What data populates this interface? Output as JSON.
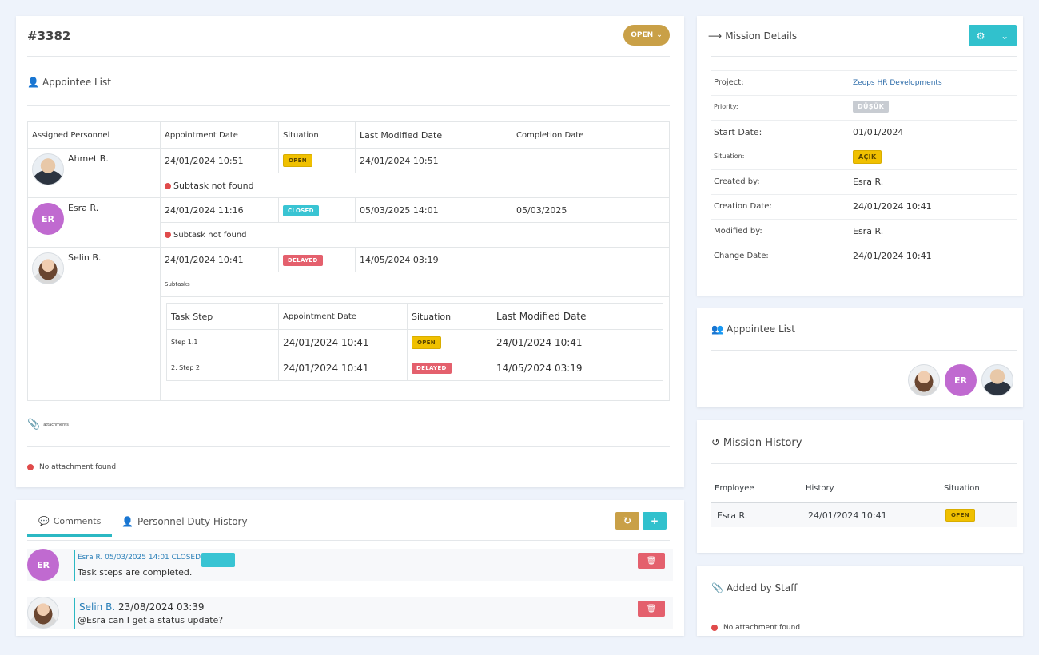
{
  "ticket": {
    "id": "#3382",
    "status_btn": "OPEN"
  },
  "appointee_section": {
    "title": "Appointee List"
  },
  "appointee_table": {
    "headers": [
      "Assigned Personnel",
      "Appointment Date",
      "Situation",
      "Last Modified Date",
      "Completion Date"
    ],
    "rows": [
      {
        "name": "Ahmet B.",
        "appointment": "24/01/2024 10:51",
        "situation": "OPEN",
        "modified": "24/01/2024 10:51",
        "completion": "",
        "note": "Subtask not found"
      },
      {
        "name": "Esra R.",
        "initials": "ER",
        "appointment": "24/01/2024 11:16",
        "situation": "CLOSED",
        "modified": "05/03/2025 14:01",
        "completion": "05/03/2025",
        "note": "Subtask not found"
      },
      {
        "name": "Selin B.",
        "appointment": "24/01/2024 10:41",
        "situation": "DELAYED",
        "modified": "14/05/2024 03:19",
        "completion": "",
        "note": "Subtasks"
      }
    ]
  },
  "subtask_table": {
    "headers": [
      "Task Step",
      "Appointment Date",
      "Situation",
      "Last Modified Date"
    ],
    "rows": [
      {
        "step": "Step 1.1",
        "appointment": "24/01/2024 10:41",
        "situation": "OPEN",
        "modified": "24/01/2024 10:41"
      },
      {
        "step": "2. Step 2",
        "appointment": "24/01/2024 10:41",
        "situation": "DELAYED",
        "modified": "14/05/2024 03:19"
      }
    ]
  },
  "attachments": {
    "title": "attachments",
    "empty": "No attachment found"
  },
  "comments": {
    "tab_comments": "Comments",
    "tab_history": "Personnel Duty History",
    "items": [
      {
        "initials": "ER",
        "meta": "Esra R. 05/03/2025 14:01 CLOSED",
        "text": "Task steps are completed."
      },
      {
        "author": "Selin B.",
        "date": "23/08/2024 03:39",
        "text": "@Esra can I get a status update?"
      }
    ]
  },
  "mission_details": {
    "title": "Mission Details",
    "fields": [
      {
        "key": "Project:",
        "value": "Zeops HR Developments"
      },
      {
        "key": "Priority:",
        "value": "DÜŞÜK"
      },
      {
        "key": "Start Date:",
        "value": "01/01/2024"
      },
      {
        "key": "Situation:",
        "value": "AÇIK"
      },
      {
        "key": "Created by:",
        "value": "Esra R."
      },
      {
        "key": "Creation Date:",
        "value": "24/01/2024 10:41"
      },
      {
        "key": "Modified by:",
        "value": "Esra R."
      },
      {
        "key": "Change Date:",
        "value": "24/01/2024 10:41"
      }
    ]
  },
  "right_appointees": {
    "title": "Appointee List",
    "initials": "ER"
  },
  "mission_history": {
    "title": "Mission History",
    "headers": [
      "Employee",
      "History",
      "Situation"
    ],
    "rows": [
      {
        "employee": "Esra R.",
        "history": "24/01/2024 10:41",
        "situation": "OPEN"
      }
    ]
  },
  "added_by_staff": {
    "title": "Added by Staff",
    "empty": "No attachment found"
  },
  "colors": {
    "accent": "#2bb8c3",
    "gold": "#c9a047",
    "open": "#f0c000",
    "closed": "#39c4d3",
    "delayed": "#e4606d",
    "purple": "#c06ad0"
  }
}
